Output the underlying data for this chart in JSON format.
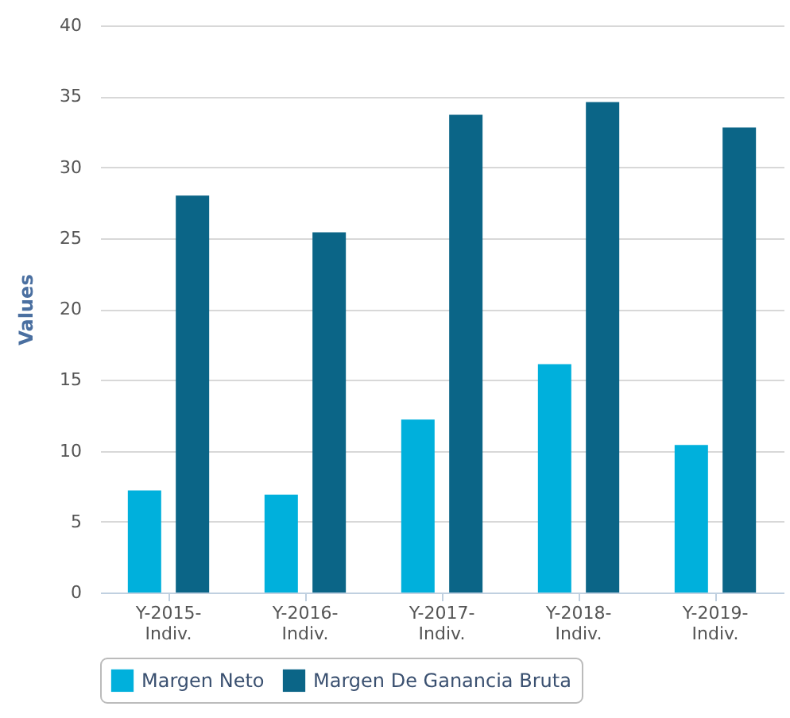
{
  "chart_data": {
    "type": "bar",
    "ylabel": "Values",
    "categories": [
      "Y-2015-Indiv.",
      "Y-2016-Indiv.",
      "Y-2017-Indiv.",
      "Y-2018-Indiv.",
      "Y-2019-Indiv."
    ],
    "series": [
      {
        "name": "Margen Neto",
        "color": "#00b0dc",
        "values": [
          7.2,
          6.9,
          12.2,
          16.1,
          10.4
        ]
      },
      {
        "name": "Margen De Ganancia Bruta",
        "color": "#0b6587",
        "values": [
          28.0,
          25.4,
          33.7,
          34.6,
          32.8
        ]
      }
    ],
    "ylim": [
      0,
      40
    ],
    "yticks": [
      0,
      5,
      10,
      15,
      20,
      25,
      30,
      35,
      40
    ],
    "grid": "y",
    "legend": "bottom"
  }
}
